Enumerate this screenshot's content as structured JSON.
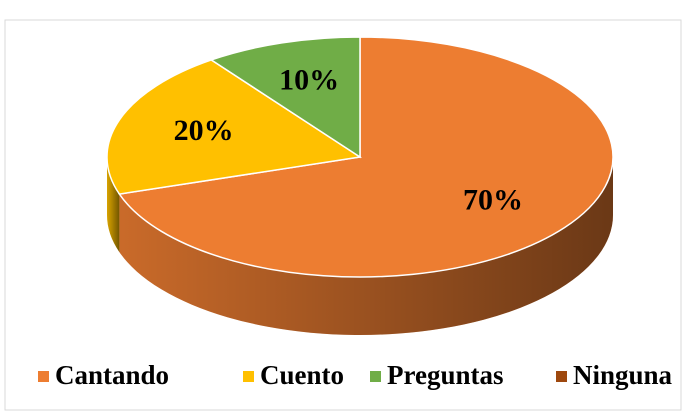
{
  "chart_data": {
    "type": "pie3d",
    "categories": [
      "Cantando",
      "Cuento",
      "Preguntas",
      "Ninguna"
    ],
    "values": [
      70,
      20,
      10,
      0
    ],
    "value_labels": [
      "70%",
      "20%",
      "10%",
      null
    ],
    "colors": [
      "#ED7D31",
      "#FFC000",
      "#70AD47",
      "#9E480E"
    ],
    "legend": "bottom"
  }
}
